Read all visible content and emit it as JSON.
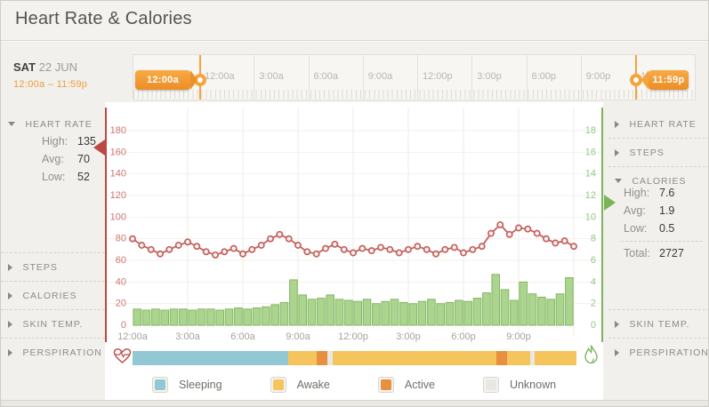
{
  "header": {
    "title": "Heart Rate & Calories"
  },
  "date": {
    "day": "SAT",
    "date": "22 JUN",
    "range": "12:00a – 11:59p"
  },
  "slider": {
    "tick_labels": [
      "12:00a",
      "3:00a",
      "6:00a",
      "9:00a",
      "12:00p",
      "3:00p",
      "6:00p",
      "9:00p",
      "12:00a"
    ],
    "start_handle": "12:00a",
    "end_handle": "11:59p"
  },
  "stats_labels": {
    "high": "High:",
    "avg": "Avg:",
    "low": "Low:",
    "total": "Total:"
  },
  "left_panel": {
    "items": [
      {
        "label": "HEART RATE",
        "expanded": true,
        "stats": {
          "high": "135",
          "avg": "70",
          "low": "52"
        }
      },
      {
        "label": "STEPS"
      },
      {
        "label": "CALORIES"
      },
      {
        "label": "SKIN TEMP."
      },
      {
        "label": "PERSPIRATION"
      }
    ]
  },
  "right_panel": {
    "items": [
      {
        "label": "HEART RATE"
      },
      {
        "label": "STEPS"
      },
      {
        "label": "CALORIES",
        "expanded": true,
        "stats": {
          "high": "7.6",
          "avg": "1.9",
          "low": "0.5",
          "total": "2727"
        }
      },
      {
        "label": "SKIN TEMP."
      },
      {
        "label": "PERSPIRATION"
      }
    ]
  },
  "chart_data": {
    "type": "line+bar",
    "x_labels": [
      "12:00a",
      "3:00a",
      "6:00a",
      "9:00a",
      "12:00p",
      "3:00p",
      "6:00p",
      "9:00p"
    ],
    "left_axis": {
      "name": "heart rate",
      "color": "#bc4743",
      "label_color": "#cd7770",
      "ticks": [
        180,
        160,
        140,
        120,
        100,
        80,
        60,
        40,
        20,
        0
      ],
      "range": [
        0,
        200
      ]
    },
    "right_axis": {
      "name": "calories",
      "color": "#7cb558",
      "label_color": "#94c982",
      "ticks": [
        18,
        16,
        14,
        12,
        10,
        8,
        6,
        4,
        2,
        0
      ],
      "range": [
        0,
        20
      ]
    },
    "series": [
      {
        "name": "heart-rate",
        "type": "line",
        "color": "#c4615c",
        "marker_fill": "#fbf4f3",
        "values": [
          80,
          74,
          70,
          66,
          70,
          74,
          77,
          73,
          68,
          65,
          68,
          71,
          66,
          70,
          74,
          80,
          84,
          80,
          74,
          68,
          66,
          71,
          75,
          70,
          67,
          71,
          69,
          72,
          70,
          67,
          70,
          73,
          70,
          66,
          70,
          72,
          67,
          70,
          73,
          85,
          93,
          84,
          90,
          89,
          85,
          80,
          76,
          78,
          73
        ]
      },
      {
        "name": "calories",
        "type": "bar",
        "fill": "#abd48e",
        "stroke": "#84b763",
        "values": [
          1.5,
          1.4,
          1.5,
          1.4,
          1.5,
          1.5,
          1.4,
          1.5,
          1.5,
          1.4,
          1.5,
          1.6,
          1.5,
          1.6,
          1.7,
          1.9,
          2.1,
          4.2,
          2.8,
          2.4,
          2.5,
          2.8,
          2.4,
          2.3,
          2.2,
          2.4,
          2.0,
          2.2,
          2.4,
          2.1,
          2.0,
          2.2,
          2.4,
          2.0,
          2.1,
          2.3,
          2.2,
          2.5,
          3.0,
          4.7,
          3.3,
          2.3,
          4.0,
          2.9,
          2.6,
          2.4,
          2.9,
          4.4
        ]
      }
    ]
  },
  "activity": {
    "segments": [
      {
        "type": "sleeping",
        "hours": 8.4
      },
      {
        "type": "awake",
        "hours": 1.55
      },
      {
        "type": "active",
        "hours": 0.6
      },
      {
        "type": "unknown",
        "hours": 0.25
      },
      {
        "type": "awake",
        "hours": 8.85
      },
      {
        "type": "active",
        "hours": 0.6
      },
      {
        "type": "awake",
        "hours": 1.25
      },
      {
        "type": "unknown",
        "hours": 0.25
      },
      {
        "type": "awake",
        "hours": 2.25
      }
    ],
    "colors": {
      "sleeping": "#92c8d4",
      "awake": "#f6c45c",
      "active": "#e7903f",
      "unknown": "#e9e7e2"
    }
  },
  "legend": {
    "items": [
      {
        "label": "Sleeping",
        "type": "sleeping"
      },
      {
        "label": "Awake",
        "type": "awake"
      },
      {
        "label": "Active",
        "type": "active"
      },
      {
        "label": "Unknown",
        "type": "unknown"
      }
    ]
  },
  "colors": {
    "accent_orange": "#f19b40",
    "heart_red": "#bc4743",
    "calorie_green": "#7cb558"
  }
}
